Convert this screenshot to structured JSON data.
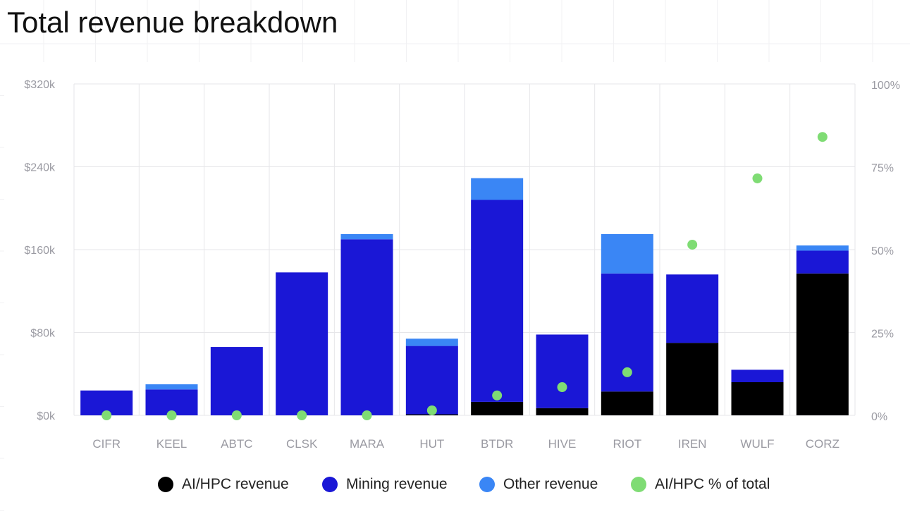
{
  "title": "Total revenue breakdown",
  "colors": {
    "ai_hpc": "#000000",
    "mining": "#1a17d6",
    "other": "#3a86f5",
    "pct": "#7fdc74",
    "grid": "#e6e6e9",
    "tick": "#9a9aa2"
  },
  "legend": [
    {
      "label": "AI/HPC revenue",
      "color": "#000000"
    },
    {
      "label": "Mining revenue",
      "color": "#1a17d6"
    },
    {
      "label": "Other revenue",
      "color": "#3a86f5"
    },
    {
      "label": "AI/HPC % of total",
      "color": "#7fdc74"
    }
  ],
  "chart_data": {
    "type": "bar",
    "stacked": true,
    "categories": [
      "CIFR",
      "KEEL",
      "ABTC",
      "CLSK",
      "MARA",
      "HUT",
      "BTDR",
      "HIVE",
      "RIOT",
      "IREN",
      "WULF",
      "CORZ"
    ],
    "series": [
      {
        "name": "AI/HPC revenue",
        "values": [
          0,
          0,
          0,
          0,
          0,
          1,
          13,
          7,
          23,
          70,
          32,
          137
        ]
      },
      {
        "name": "Mining revenue",
        "values": [
          24,
          25,
          66,
          138,
          170,
          66,
          195,
          71,
          114,
          66,
          12,
          22
        ]
      },
      {
        "name": "Other revenue",
        "values": [
          0,
          5,
          0,
          0,
          5,
          7,
          21,
          0,
          38,
          0,
          0,
          5
        ]
      }
    ],
    "line_series": {
      "name": "AI/HPC % of total",
      "axis": "right",
      "values": [
        0,
        0,
        0,
        0,
        0,
        1.5,
        6,
        8.5,
        13,
        51.5,
        71.5,
        84
      ]
    },
    "y_left": {
      "ticks": [
        "$0k",
        "$80k",
        "$160k",
        "$240k",
        "$320k"
      ],
      "tick_values": [
        0,
        80,
        160,
        240,
        320
      ],
      "ylim": [
        0,
        320
      ]
    },
    "y_right": {
      "ticks": [
        "0%",
        "25%",
        "50%",
        "75%",
        "100%"
      ],
      "tick_values": [
        0,
        25,
        50,
        75,
        100
      ],
      "ylim": [
        0,
        100
      ]
    },
    "grid": true,
    "legend_position": "bottom"
  }
}
